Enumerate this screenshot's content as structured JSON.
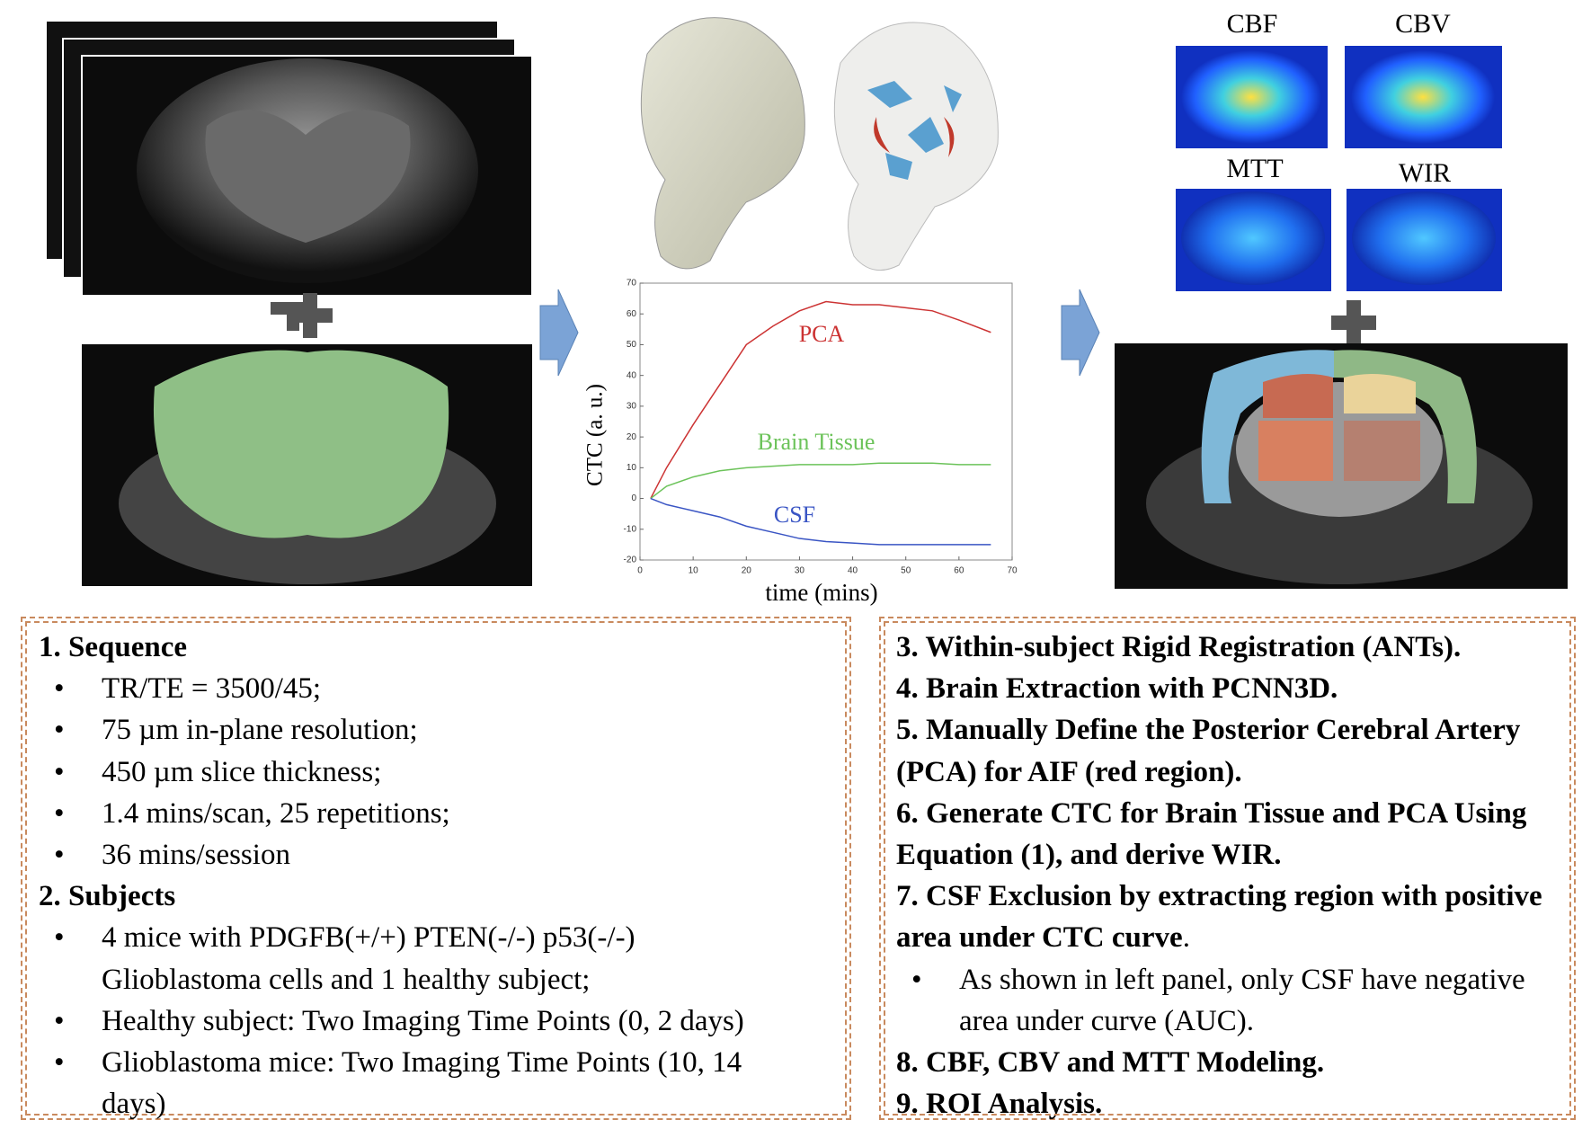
{
  "panels": {
    "map_labels": [
      "CBF",
      "CBV",
      "MTT",
      "WIR"
    ]
  },
  "chart_data": {
    "type": "line",
    "xlabel": "time (mins)",
    "ylabel": "CTC (a. u.)",
    "x": [
      2,
      5,
      10,
      15,
      20,
      25,
      30,
      35,
      40,
      45,
      50,
      55,
      60,
      66
    ],
    "series": [
      {
        "name": "PCA",
        "color": "#cc3333",
        "values": [
          0,
          10,
          24,
          37,
          50,
          56,
          61,
          64,
          63,
          63,
          62,
          61,
          58,
          54
        ]
      },
      {
        "name": "Brain Tissue",
        "color": "#6cc35a",
        "values": [
          0,
          4,
          7,
          9,
          10,
          10.5,
          11,
          11,
          11,
          11.5,
          11.5,
          11.5,
          11,
          11
        ]
      },
      {
        "name": "CSF",
        "color": "#3a55c4",
        "values": [
          0,
          -2,
          -4,
          -6,
          -9,
          -11,
          -13,
          -14,
          -14.5,
          -15,
          -15,
          -15,
          -15,
          -15
        ]
      }
    ],
    "xlim": [
      0,
      70
    ],
    "xticks": [
      0,
      10,
      20,
      30,
      40,
      50,
      60,
      70
    ],
    "ylim": [
      -20,
      70
    ],
    "yticks": [
      -20,
      -10,
      0,
      10,
      20,
      30,
      40,
      50,
      60,
      70
    ]
  },
  "left_box": {
    "sections": [
      {
        "heading": "1. Sequence",
        "bullets": [
          "TR/TE = 3500/45;",
          "75 µm in-plane resolution;",
          "450 µm slice thickness;",
          "1.4 mins/scan, 25 repetitions;",
          "36 mins/session"
        ]
      },
      {
        "heading": "2. Subjects",
        "bullets": [
          "4 mice with PDGFB(+/+) PTEN(-/-) p53(-/-) Glioblastoma cells and 1 healthy subject;",
          "Healthy subject: Two Imaging Time Points (0, 2 days)",
          "Glioblastoma mice: Two Imaging Time Points (10, 14 days)"
        ]
      }
    ]
  },
  "right_box": {
    "steps_a": [
      "3. Within-subject Rigid Registration (ANTs).",
      "4. Brain Extraction with PCNN3D.",
      "5. Manually Define the Posterior Cerebral Artery (PCA) for AIF (red region).",
      "6. Generate CTC for Brain Tissue and PCA Using Equation (1), and derive WIR."
    ],
    "step7": {
      "bold": "7. CSF Exclusion by extracting region with positive area under CTC curve",
      "tail": "."
    },
    "step7_bullet": "As shown in left panel, only CSF have negative area under curve (AUC).",
    "steps_b": [
      "8. CBF, CBV and MTT Modeling.",
      "9. ROI Analysis."
    ]
  }
}
